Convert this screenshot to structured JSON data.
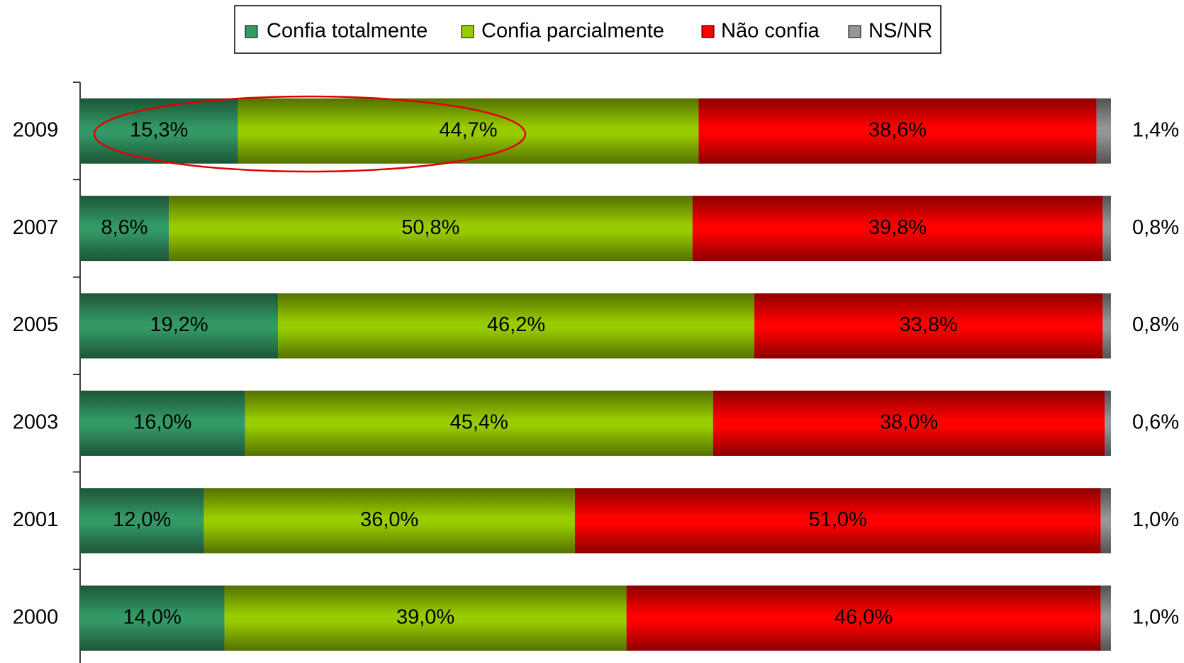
{
  "chart_data": {
    "type": "stacked-bar-horizontal",
    "categories": [
      "2009",
      "2007",
      "2005",
      "2003",
      "2001",
      "2000"
    ],
    "legend": "top",
    "series": [
      {
        "name": "Confia totalmente",
        "color": "#339966",
        "values": [
          15.3,
          8.6,
          19.2,
          16.0,
          12.0,
          14.0
        ],
        "value_labels": [
          "15,3%",
          "8,6%",
          "19,2%",
          "16,0%",
          "12,0%",
          "14,0%"
        ]
      },
      {
        "name": "Confia parcialmente",
        "color": "#99cc00",
        "values": [
          44.7,
          50.8,
          46.2,
          45.4,
          36.0,
          39.0
        ],
        "value_labels": [
          "44,7%",
          "50,8%",
          "46,2%",
          "45,4%",
          "36,0%",
          "39,0%"
        ]
      },
      {
        "name": "Não confia",
        "color": "#ff0000",
        "values": [
          38.6,
          39.8,
          33.8,
          38.0,
          51.0,
          46.0
        ],
        "value_labels": [
          "38,6%",
          "39,8%",
          "33,8%",
          "38,0%",
          "51,0%",
          "46,0%"
        ]
      },
      {
        "name": "NS/NR",
        "color": "#969696",
        "values": [
          1.4,
          0.8,
          0.8,
          0.6,
          1.0,
          1.0
        ],
        "value_labels": [
          "1,4%",
          "0,8%",
          "0,8%",
          "0,6%",
          "1,0%",
          "1,0%"
        ]
      }
    ]
  }
}
